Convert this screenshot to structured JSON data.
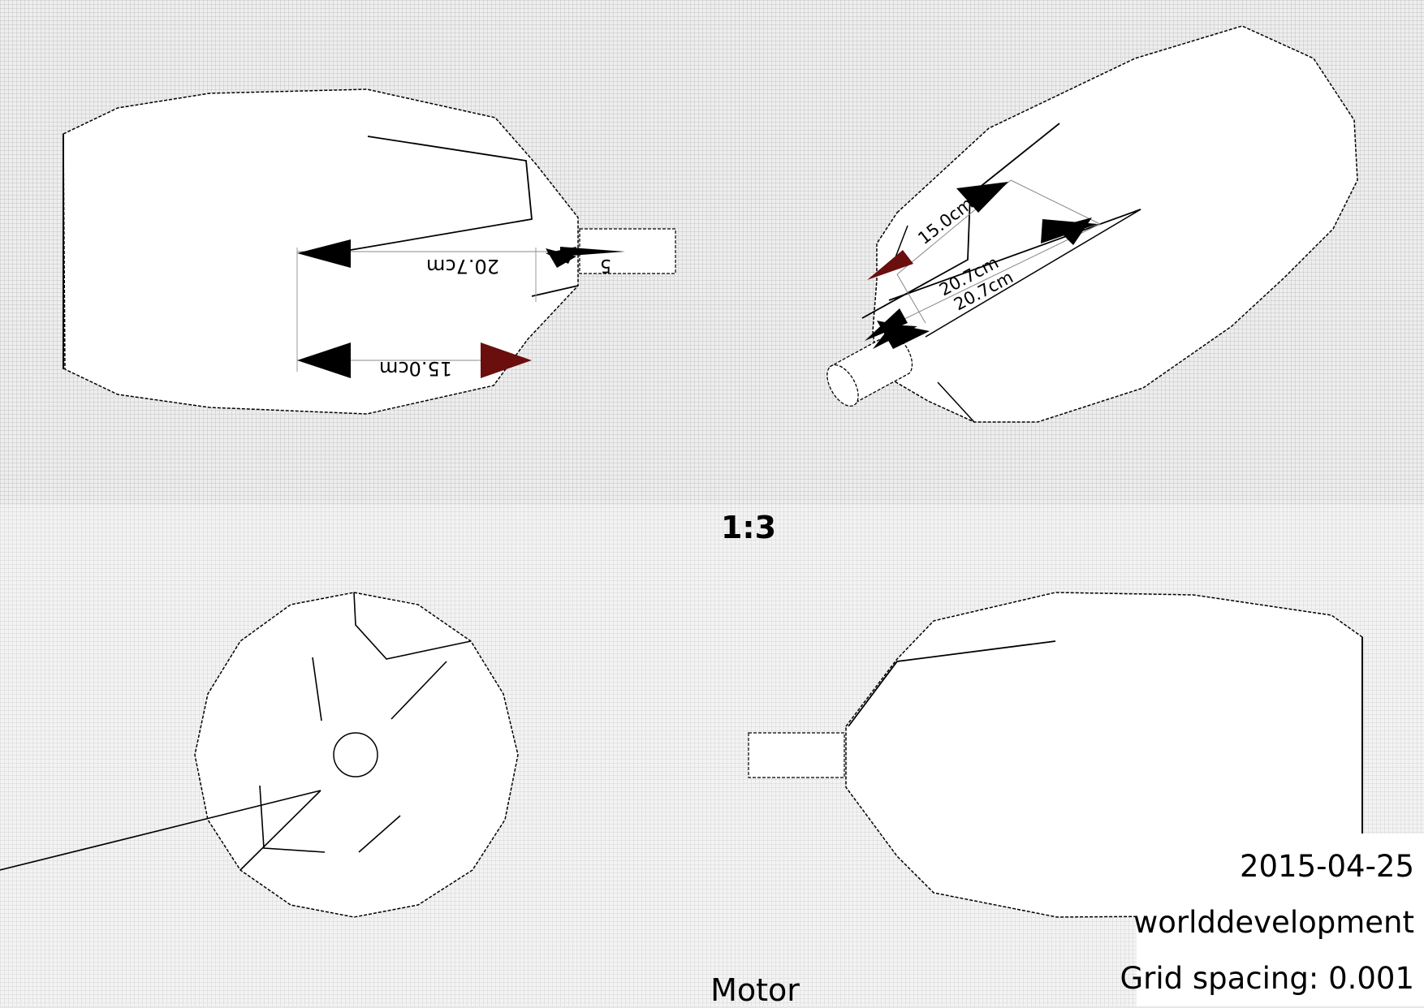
{
  "scale": "1:3",
  "part_name": "Motor",
  "title_block": {
    "date": "2015-04-25",
    "author": "worlddevelopment",
    "grid_spacing": "Grid spacing: 0.001"
  },
  "dimensions": {
    "length_label": "20.7cm",
    "length_label_2": "20.7cm",
    "width_label": "15.0cm",
    "shaft_label": "5"
  },
  "colors": {
    "outline": "#000000",
    "part_fill": "#ffffff",
    "grid_background": "#e6e6e6",
    "arrow_red": "#6b0e0e"
  },
  "views": [
    "top-view",
    "isometric-view",
    "front-view",
    "side-view"
  ]
}
